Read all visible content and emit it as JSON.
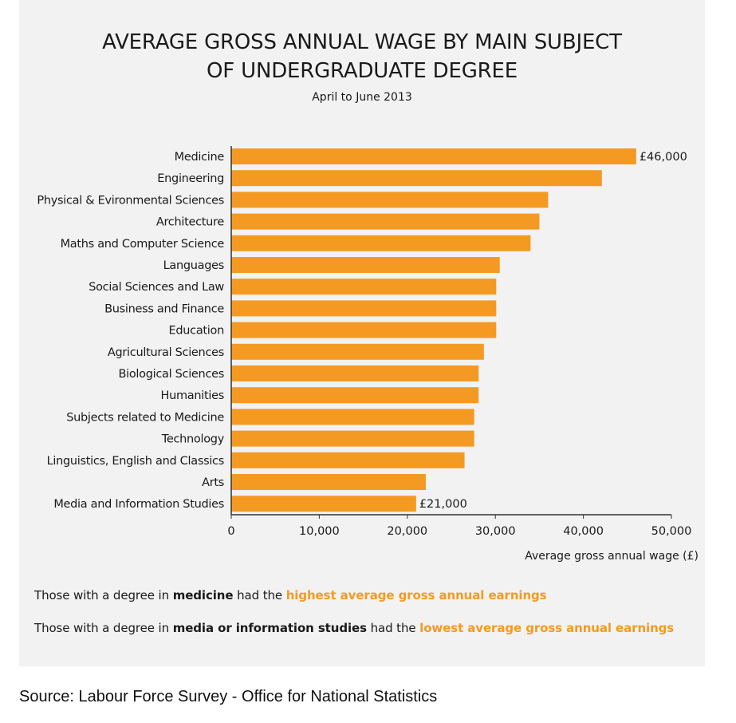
{
  "chart_data": {
    "type": "bar",
    "orientation": "horizontal",
    "title_lines": [
      "AVERAGE GROSS ANNUAL WAGE BY MAIN SUBJECT",
      "OF UNDERGRADUATE DEGREE"
    ],
    "subtitle": "April to June 2013",
    "categories": [
      "Medicine",
      "Engineering",
      "Physical & Evironmental Sciences",
      "Architecture",
      "Maths and Computer Science",
      "Languages",
      "Social Sciences and Law",
      "Business and Finance",
      "Education",
      "Agricultural Sciences",
      "Biological Sciences",
      "Humanities",
      "Subjects related to Medicine",
      "Technology",
      "Linguistics, English and Classics",
      "Arts",
      "Media and Information Studies"
    ],
    "values": [
      46000,
      42100,
      36000,
      35000,
      34000,
      30500,
      30100,
      30100,
      30100,
      28700,
      28100,
      28100,
      27600,
      27600,
      26500,
      22100,
      21000
    ],
    "data_labels": [
      {
        "index": 0,
        "text": "£46,000"
      },
      {
        "index": 16,
        "text": "£21,000"
      }
    ],
    "xlim": [
      0,
      50000
    ],
    "xticks": [
      0,
      10000,
      20000,
      30000,
      40000,
      50000
    ],
    "xtick_labels": [
      "0",
      "10,000",
      "20,000",
      "30,000",
      "40,000",
      "50,000"
    ],
    "xlabel": "Average gross annual wage (£)",
    "ylabel": "",
    "bar_color": "#f49a23",
    "grid": false
  },
  "notes": {
    "line1": {
      "pre": "Those with a degree in ",
      "bold": "medicine",
      "mid": " had the ",
      "highlight": "highest average gross annual earnings"
    },
    "line2": {
      "pre": "Those with a degree in ",
      "bold": "media or information studies",
      "mid": " had the ",
      "highlight": "lowest average gross annual earnings"
    }
  },
  "source": "Source: Labour Force Survey - Office for National Statistics",
  "colors": {
    "accent": "#f49a23",
    "panel_background": "#f2f2f2",
    "text": "#1a1a1a"
  }
}
